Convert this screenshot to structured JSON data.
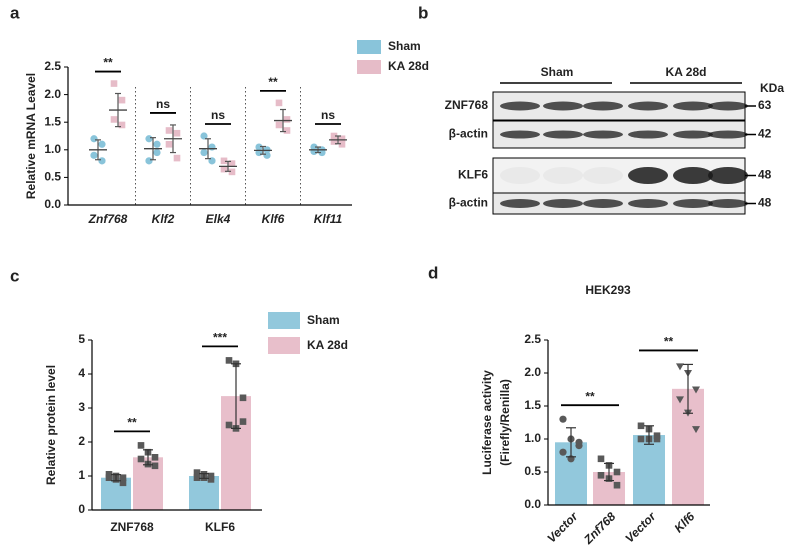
{
  "panel_labels": [
    "a",
    "b",
    "c",
    "d"
  ],
  "blot": {
    "groups": [
      "Sham",
      "KA 28d"
    ],
    "unit": "KDa",
    "rows": [
      {
        "name": "ZNF768",
        "mw": 63
      },
      {
        "name": "β-actin",
        "mw": 42
      },
      {
        "name": "KLF6",
        "mw": 48
      },
      {
        "name": "β-actin",
        "mw": 48
      }
    ]
  },
  "chart_data": [
    {
      "type": "dot",
      "y_label": "Relative mRNA Leavel",
      "categories": [
        "Znf768",
        "Klf2",
        "Elk4",
        "Klf6",
        "Klf11"
      ],
      "series": [
        {
          "name": "Sham",
          "color": "#89c4da",
          "marker": "circle",
          "values": [
            1.0,
            1.02,
            1.02,
            0.99,
            1.0
          ],
          "errors": [
            0.18,
            0.2,
            0.18,
            0.07,
            0.05
          ],
          "points": [
            [
              1.2,
              1.1,
              0.9,
              0.8
            ],
            [
              1.2,
              1.1,
              0.8,
              0.95
            ],
            [
              1.25,
              1.05,
              0.95,
              0.8
            ],
            [
              1.05,
              1.0,
              0.95,
              0.9
            ],
            [
              1.05,
              1.0,
              0.97,
              0.95
            ]
          ]
        },
        {
          "name": "KA 28d",
          "color": "#e6bcc8",
          "marker": "square",
          "values": [
            1.72,
            1.2,
            0.7,
            1.53,
            1.18
          ],
          "errors": [
            0.3,
            0.25,
            0.09,
            0.2,
            0.07
          ],
          "points": [
            [
              2.2,
              1.9,
              1.55,
              1.45
            ],
            [
              1.35,
              1.3,
              1.1,
              0.85
            ],
            [
              0.8,
              0.75,
              0.65,
              0.6
            ],
            [
              1.85,
              1.55,
              1.45,
              1.35
            ],
            [
              1.25,
              1.2,
              1.15,
              1.1
            ]
          ]
        }
      ],
      "significance": [
        "**",
        "ns",
        "ns",
        "**",
        "ns"
      ],
      "ylim": [
        0,
        2.5
      ],
      "yticks": [
        {
          "value": 0,
          "label": "0.0"
        },
        0.5,
        {
          "value": 1,
          "label": "1.0"
        },
        1.5,
        {
          "value": 2,
          "label": "2.0"
        },
        2.5
      ]
    },
    {
      "type": "bar",
      "y_label": "Relative protein level",
      "categories": [
        "ZNF768",
        "KLF6"
      ],
      "series": [
        {
          "name": "Sham",
          "color": "#92c8dc",
          "values": [
            0.95,
            1.0
          ],
          "errors": [
            0.09,
            0.07
          ],
          "points": [
            [
              1.05,
              1.0,
              0.95,
              0.95,
              0.9,
              0.8
            ],
            [
              1.1,
              1.05,
              1.0,
              0.95,
              0.95,
              0.9
            ]
          ]
        },
        {
          "name": "KA 28d",
          "color": "#e8bfcb",
          "values": [
            1.55,
            3.35
          ],
          "errors": [
            0.22,
            0.95
          ],
          "points": [
            [
              1.9,
              1.7,
              1.55,
              1.5,
              1.35,
              1.3
            ],
            [
              4.4,
              4.3,
              3.3,
              2.5,
              2.4,
              2.6
            ]
          ]
        }
      ],
      "point_color": "#595959",
      "significance": [
        "**",
        "***"
      ],
      "ylim": [
        0,
        5
      ],
      "yticks": [
        0,
        1,
        2,
        3,
        4,
        5
      ]
    },
    {
      "type": "bar-single",
      "title": "HEK293",
      "y_label": [
        "Luciferase activity",
        "(Firefly/Renilla)"
      ],
      "categories": [
        "Vector",
        "Znf768",
        "Vector",
        "Klf6"
      ],
      "colors": [
        "#92c8dc",
        "#e8bfcb",
        "#92c8dc",
        "#e8bfcb"
      ],
      "markers": [
        "circle",
        "square",
        "square",
        "triangle"
      ],
      "point_color": "#595959",
      "values": [
        0.95,
        0.5,
        1.06,
        1.76
      ],
      "errors": [
        0.22,
        0.13,
        0.14,
        0.37
      ],
      "points": [
        [
          1.3,
          1.0,
          0.9,
          0.8,
          0.7,
          0.95
        ],
        [
          0.7,
          0.6,
          0.5,
          0.45,
          0.4,
          0.3
        ],
        [
          1.2,
          1.15,
          1.05,
          1.0,
          1.0,
          1.0
        ],
        [
          2.1,
          2.0,
          1.75,
          1.6,
          1.4,
          1.15
        ]
      ],
      "significance": [
        "**",
        "**"
      ],
      "ylim": [
        0,
        2.5
      ],
      "yticks": [
        {
          "value": 0,
          "label": "0.0"
        },
        0.5,
        {
          "value": 1,
          "label": "1.0"
        },
        1.5,
        {
          "value": 2,
          "label": "2.0"
        },
        2.5
      ]
    }
  ]
}
